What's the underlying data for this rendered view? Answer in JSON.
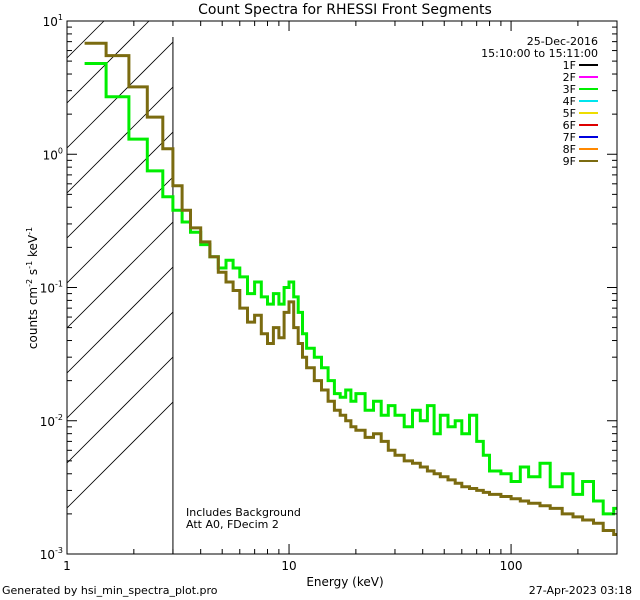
{
  "chart_data": {
    "type": "line",
    "step": true,
    "title": "Count Spectra for RHESSI Front Segments",
    "xlabel": "Energy (keV)",
    "ylabel_parts": [
      "counts cm",
      "-2",
      " s",
      "-1",
      " keV",
      "-1"
    ],
    "xscale": "log",
    "yscale": "log",
    "xlim": [
      1,
      300
    ],
    "ylim": [
      0.001,
      10
    ],
    "x_ticks": [
      {
        "value": 1,
        "label": "1"
      },
      {
        "value": 10,
        "label": "10"
      },
      {
        "value": 100,
        "label": "100"
      }
    ],
    "y_ticks": [
      {
        "value": 0.001,
        "base": "10",
        "exp": "-3"
      },
      {
        "value": 0.01,
        "base": "10",
        "exp": "-2"
      },
      {
        "value": 0.1,
        "base": "10",
        "exp": "-1"
      },
      {
        "value": 1,
        "base": "10",
        "exp": "0"
      },
      {
        "value": 10,
        "base": "10",
        "exp": "1"
      }
    ],
    "date": "25-Dec-2016",
    "time_range": "15:10:00 to 15:11:00",
    "shaded_region": {
      "x_from": 1,
      "x_to": 3
    },
    "annotations": [
      "Includes Background",
      "Att A0, FDecim 2"
    ],
    "legend": [
      {
        "label": "1F",
        "color": "#000000"
      },
      {
        "label": "2F",
        "color": "#ff00ff"
      },
      {
        "label": "3F",
        "color": "#00ee00"
      },
      {
        "label": "4F",
        "color": "#00e5ee"
      },
      {
        "label": "5F",
        "color": "#eedd00"
      },
      {
        "label": "6F",
        "color": "#dd0000"
      },
      {
        "label": "7F",
        "color": "#0000dd"
      },
      {
        "label": "8F",
        "color": "#ff8800"
      },
      {
        "label": "9F",
        "color": "#7b6b10"
      }
    ],
    "series": [
      {
        "name": "3F",
        "color": "#00ee00",
        "points": [
          [
            1.2,
            4.8
          ],
          [
            1.5,
            2.7
          ],
          [
            1.9,
            1.3
          ],
          [
            2.3,
            0.75
          ],
          [
            2.7,
            0.48
          ],
          [
            3.0,
            0.38
          ],
          [
            3.3,
            0.31
          ],
          [
            3.6,
            0.26
          ],
          [
            4.0,
            0.21
          ],
          [
            4.4,
            0.17
          ],
          [
            4.8,
            0.14
          ],
          [
            5.2,
            0.16
          ],
          [
            5.6,
            0.14
          ],
          [
            6.0,
            0.12
          ],
          [
            6.5,
            0.09
          ],
          [
            7.0,
            0.11
          ],
          [
            7.5,
            0.085
          ],
          [
            8.0,
            0.075
          ],
          [
            8.5,
            0.09
          ],
          [
            9.0,
            0.075
          ],
          [
            9.5,
            0.1
          ],
          [
            10.0,
            0.11
          ],
          [
            10.5,
            0.085
          ],
          [
            11.0,
            0.065
          ],
          [
            11.5,
            0.045
          ],
          [
            12.0,
            0.035
          ],
          [
            13.0,
            0.03
          ],
          [
            14.0,
            0.025
          ],
          [
            15.0,
            0.02
          ],
          [
            16.0,
            0.016
          ],
          [
            17.0,
            0.015
          ],
          [
            18.0,
            0.017
          ],
          [
            19.0,
            0.014
          ],
          [
            20.0,
            0.016
          ],
          [
            22.0,
            0.012
          ],
          [
            24.0,
            0.014
          ],
          [
            26.0,
            0.011
          ],
          [
            28.0,
            0.013
          ],
          [
            30.0,
            0.011
          ],
          [
            33.0,
            0.009
          ],
          [
            36.0,
            0.012
          ],
          [
            39.0,
            0.01
          ],
          [
            42.0,
            0.013
          ],
          [
            45.0,
            0.008
          ],
          [
            48.0,
            0.011
          ],
          [
            52.0,
            0.009
          ],
          [
            56.0,
            0.01
          ],
          [
            60.0,
            0.008
          ],
          [
            65.0,
            0.011
          ],
          [
            70.0,
            0.007
          ],
          [
            75.0,
            0.0055
          ],
          [
            80.0,
            0.0042
          ],
          [
            90.0,
            0.004
          ],
          [
            100.0,
            0.0035
          ],
          [
            110.0,
            0.0045
          ],
          [
            120.0,
            0.0038
          ],
          [
            135.0,
            0.0048
          ],
          [
            150.0,
            0.0032
          ],
          [
            170.0,
            0.004
          ],
          [
            190.0,
            0.0028
          ],
          [
            210.0,
            0.0035
          ],
          [
            235.0,
            0.0025
          ],
          [
            260.0,
            0.002
          ],
          [
            290.0,
            0.0022
          ]
        ]
      },
      {
        "name": "9F",
        "color": "#7b6b10",
        "points": [
          [
            1.2,
            6.8
          ],
          [
            1.5,
            5.5
          ],
          [
            1.9,
            3.2
          ],
          [
            2.3,
            1.9
          ],
          [
            2.7,
            1.1
          ],
          [
            3.0,
            0.58
          ],
          [
            3.3,
            0.38
          ],
          [
            3.6,
            0.28
          ],
          [
            4.0,
            0.22
          ],
          [
            4.4,
            0.17
          ],
          [
            4.8,
            0.13
          ],
          [
            5.2,
            0.11
          ],
          [
            5.6,
            0.095
          ],
          [
            6.0,
            0.07
          ],
          [
            6.5,
            0.055
          ],
          [
            7.0,
            0.062
          ],
          [
            7.5,
            0.045
          ],
          [
            8.0,
            0.038
          ],
          [
            8.5,
            0.05
          ],
          [
            9.0,
            0.042
          ],
          [
            9.5,
            0.065
          ],
          [
            10.0,
            0.078
          ],
          [
            10.5,
            0.05
          ],
          [
            11.0,
            0.038
          ],
          [
            11.5,
            0.03
          ],
          [
            12.0,
            0.025
          ],
          [
            13.0,
            0.02
          ],
          [
            14.0,
            0.017
          ],
          [
            15.0,
            0.014
          ],
          [
            16.0,
            0.012
          ],
          [
            17.0,
            0.011
          ],
          [
            18.0,
            0.01
          ],
          [
            19.0,
            0.009
          ],
          [
            20.0,
            0.0085
          ],
          [
            22.0,
            0.0075
          ],
          [
            24.0,
            0.008
          ],
          [
            26.0,
            0.007
          ],
          [
            28.0,
            0.006
          ],
          [
            30.0,
            0.0055
          ],
          [
            33.0,
            0.005
          ],
          [
            36.0,
            0.0048
          ],
          [
            39.0,
            0.0045
          ],
          [
            42.0,
            0.0042
          ],
          [
            45.0,
            0.004
          ],
          [
            48.0,
            0.0038
          ],
          [
            52.0,
            0.0036
          ],
          [
            56.0,
            0.0034
          ],
          [
            60.0,
            0.0032
          ],
          [
            65.0,
            0.0031
          ],
          [
            70.0,
            0.003
          ],
          [
            75.0,
            0.0029
          ],
          [
            80.0,
            0.0028
          ],
          [
            90.0,
            0.0027
          ],
          [
            100.0,
            0.0026
          ],
          [
            110.0,
            0.0025
          ],
          [
            120.0,
            0.0024
          ],
          [
            135.0,
            0.0023
          ],
          [
            150.0,
            0.0022
          ],
          [
            170.0,
            0.002
          ],
          [
            190.0,
            0.0019
          ],
          [
            210.0,
            0.0018
          ],
          [
            235.0,
            0.0017
          ],
          [
            260.0,
            0.0015
          ],
          [
            290.0,
            0.0014
          ]
        ]
      }
    ]
  },
  "footer": {
    "generated_by": "Generated by hsi_min_spectra_plot.pro",
    "timestamp": "27-Apr-2023 03:18"
  }
}
